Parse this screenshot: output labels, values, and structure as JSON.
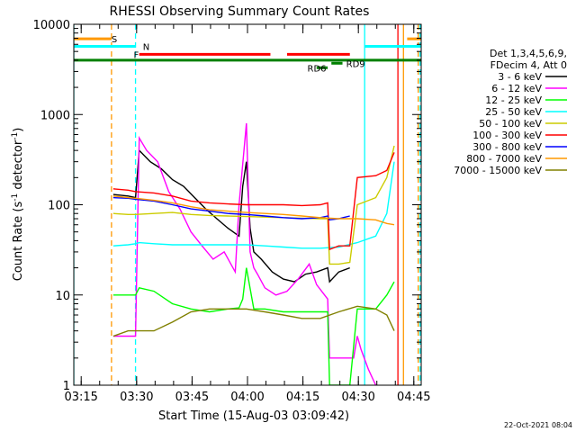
{
  "chart_data": {
    "type": "line",
    "title": "RHESSI Observing Summary Count Rates",
    "xlabel": "Start Time (15-Aug-03 03:09:42)",
    "ylabel_main": "Count Rate (s",
    "ylabel_sup": "-1",
    "ylabel_mid": " detector",
    "ylabel_sup2": "-1",
    "ylabel_end": ")",
    "yscale": "log",
    "ylim": [
      1,
      10000
    ],
    "xlim_minutes": [
      3.3,
      97.3
    ],
    "x_ticks": [
      {
        "label": "03:15",
        "value": 5.3
      },
      {
        "label": "03:30",
        "value": 20.3
      },
      {
        "label": "03:45",
        "value": 35.3
      },
      {
        "label": "04:00",
        "value": 50.3
      },
      {
        "label": "04:15",
        "value": 65.3
      },
      {
        "label": "04:30",
        "value": 80.3
      },
      {
        "label": "04:45",
        "value": 95.3
      }
    ],
    "y_ticks": [
      {
        "label": "1",
        "value": 1
      },
      {
        "label": "10",
        "value": 10
      },
      {
        "label": "100",
        "value": 100
      },
      {
        "label": "1000",
        "value": 1000
      },
      {
        "label": "10000",
        "value": 10000
      }
    ],
    "legend_header": [
      "Det 1,3,4,5,6,9,",
      "FDecim 4, Att 0"
    ],
    "legend_position": "right",
    "series": [
      {
        "name": "3 - 6 keV",
        "color": "#000000",
        "x": [
          14,
          18,
          20,
          21,
          24,
          27,
          30,
          33,
          36,
          39,
          42,
          45,
          48,
          49,
          50,
          51,
          52,
          54,
          57,
          60,
          63,
          66,
          69,
          72,
          72.5,
          75,
          78
        ],
        "y": [
          130,
          125,
          120,
          400,
          300,
          250,
          190,
          160,
          120,
          90,
          70,
          55,
          45,
          160,
          300,
          55,
          30,
          25,
          18,
          15,
          14,
          17,
          18,
          20,
          14,
          18,
          20
        ]
      },
      {
        "name": "6 - 12 keV",
        "color": "#ff00ff",
        "x": [
          14,
          18,
          20,
          21,
          23,
          26,
          29,
          32,
          35,
          38,
          41,
          44,
          47,
          48,
          50,
          51,
          52,
          53,
          55,
          58,
          61,
          64,
          67,
          69,
          72,
          72.5,
          74,
          76,
          78,
          79,
          80,
          81,
          83,
          85
        ],
        "y": [
          3.5,
          3.5,
          3.5,
          550,
          400,
          300,
          140,
          90,
          50,
          35,
          25,
          30,
          18,
          100,
          800,
          30,
          20,
          17,
          12,
          10,
          11,
          15,
          22,
          13,
          9,
          2,
          2,
          2,
          2,
          2,
          3.5,
          2.5,
          1.5,
          1
        ]
      },
      {
        "name": "12 - 25 keV",
        "color": "#00ff00",
        "x": [
          14,
          18,
          20,
          21,
          25,
          30,
          35,
          40,
          45,
          48,
          49,
          50,
          52,
          55,
          60,
          65,
          69,
          72,
          72.5,
          74,
          76,
          78,
          80,
          85,
          88,
          90
        ],
        "y": [
          10,
          10,
          10,
          12,
          11,
          8,
          7,
          6.5,
          7,
          7.2,
          9,
          20,
          7,
          7,
          6.5,
          6.5,
          6.5,
          6.5,
          1,
          1,
          1,
          1,
          7,
          7,
          10,
          14
        ]
      },
      {
        "name": "25 - 50 keV",
        "color": "#00ffff",
        "x": [
          14,
          18,
          20,
          21,
          25,
          30,
          35,
          40,
          45,
          50,
          55,
          60,
          65,
          70,
          75,
          80,
          85,
          88,
          90
        ],
        "y": [
          35,
          36,
          37,
          38,
          37,
          36,
          36,
          36,
          36,
          36,
          35,
          34,
          33,
          33,
          34,
          38,
          45,
          80,
          300
        ]
      },
      {
        "name": "50 - 100 keV",
        "color": "#cccc00",
        "x": [
          14,
          18,
          20,
          25,
          30,
          35,
          40,
          45,
          50,
          55,
          60,
          65,
          70,
          72,
          72.5,
          75,
          78,
          80,
          85,
          88,
          90
        ],
        "y": [
          80,
          78,
          78,
          80,
          82,
          78,
          76,
          75,
          74,
          73,
          72,
          71,
          70,
          70,
          22,
          22,
          23,
          100,
          120,
          200,
          450
        ]
      },
      {
        "name": "100 - 300 keV",
        "color": "#ff0000",
        "x": [
          14,
          18,
          20,
          25,
          30,
          35,
          40,
          45,
          50,
          55,
          60,
          65,
          70,
          72,
          72.5,
          75,
          78,
          80,
          85,
          88,
          90
        ],
        "y": [
          150,
          145,
          140,
          135,
          125,
          110,
          105,
          102,
          100,
          100,
          100,
          98,
          100,
          105,
          32,
          35,
          35,
          200,
          210,
          240,
          380
        ]
      },
      {
        "name": "300 - 800 keV",
        "color": "#0000ff",
        "x": [
          14,
          18,
          20,
          25,
          30,
          35,
          40,
          45,
          50,
          55,
          60,
          65,
          70,
          72,
          72.5,
          75,
          78
        ],
        "y": [
          120,
          118,
          115,
          110,
          100,
          90,
          85,
          80,
          78,
          75,
          72,
          70,
          72,
          75,
          68,
          70,
          75
        ]
      },
      {
        "name": "800 - 7000 keV",
        "color": "#ff9900",
        "x": [
          14,
          18,
          20,
          25,
          30,
          35,
          40,
          45,
          50,
          55,
          60,
          65,
          70,
          75,
          80,
          85,
          88,
          90
        ],
        "y": [
          125,
          120,
          118,
          112,
          105,
          95,
          88,
          85,
          82,
          80,
          78,
          75,
          72,
          70,
          70,
          68,
          62,
          60
        ]
      },
      {
        "name": "7000 - 15000 keV",
        "color": "#808000",
        "x": [
          14,
          18,
          20,
          25,
          30,
          35,
          40,
          45,
          50,
          55,
          60,
          65,
          70,
          75,
          80,
          85,
          88,
          90
        ],
        "y": [
          3.5,
          4,
          4,
          4,
          5,
          6.5,
          7,
          7,
          7,
          6.5,
          6,
          5.5,
          5.5,
          6.5,
          7.5,
          7,
          6,
          4
        ]
      }
    ],
    "bar_annotations": [
      {
        "label": "S",
        "color": "#ff9900",
        "level": 6900,
        "x_start": 3.3,
        "x_end": 13.5,
        "label_at": 13.5
      },
      {
        "label": "S",
        "color": "#ff9900",
        "level": 6900,
        "x_start": 93.5,
        "x_end": 97.3,
        "label_at": null
      },
      {
        "label": "N",
        "color": "#00ffff",
        "level": 5700,
        "x_start": 3.3,
        "x_end": 20.0,
        "label_at": 22.0
      },
      {
        "label": "N",
        "color": "#00ffff",
        "level": 5700,
        "x_start": 82.0,
        "x_end": 97.3,
        "label_at": null
      },
      {
        "label": "F",
        "color": "#ff0000",
        "level": 4650,
        "x_start": 21.0,
        "x_end": 56.5,
        "label_at": 19.5
      },
      {
        "label": "",
        "color": "#ff0000",
        "level": 4650,
        "x_start": 61.0,
        "x_end": 78.0,
        "label_at": null
      },
      {
        "label": "",
        "color": "#008000",
        "level": 4000,
        "x_start": 3.3,
        "x_end": 97.3,
        "label_at": null
      },
      {
        "label": "RD9",
        "color": "#008000",
        "level": 3700,
        "x_start": 73.0,
        "x_end": 76.0,
        "label_at": 77.0
      },
      {
        "label": "RD6",
        "color": "#008000",
        "level": 3300,
        "x_start": 69.0,
        "x_end": 72.0,
        "label_at": 66.5
      }
    ],
    "vertical_lines": [
      {
        "x": 3.3,
        "color": "#00ffff",
        "style": "solid"
      },
      {
        "x": 13.5,
        "color": "#ff9900",
        "style": "dashed"
      },
      {
        "x": 20.0,
        "color": "#00ffff",
        "style": "dashed"
      },
      {
        "x": 82.0,
        "color": "#00ffff",
        "style": "solid"
      },
      {
        "x": 91.0,
        "color": "#ff0000",
        "style": "solid"
      },
      {
        "x": 92.5,
        "color": "#ff9900",
        "style": "solid"
      },
      {
        "x": 96.5,
        "color": "#ff9900",
        "style": "dashed"
      },
      {
        "x": 97.0,
        "color": "#00ffff",
        "style": "dashed"
      }
    ],
    "footer_date": "22-Oct-2021 08:04"
  }
}
